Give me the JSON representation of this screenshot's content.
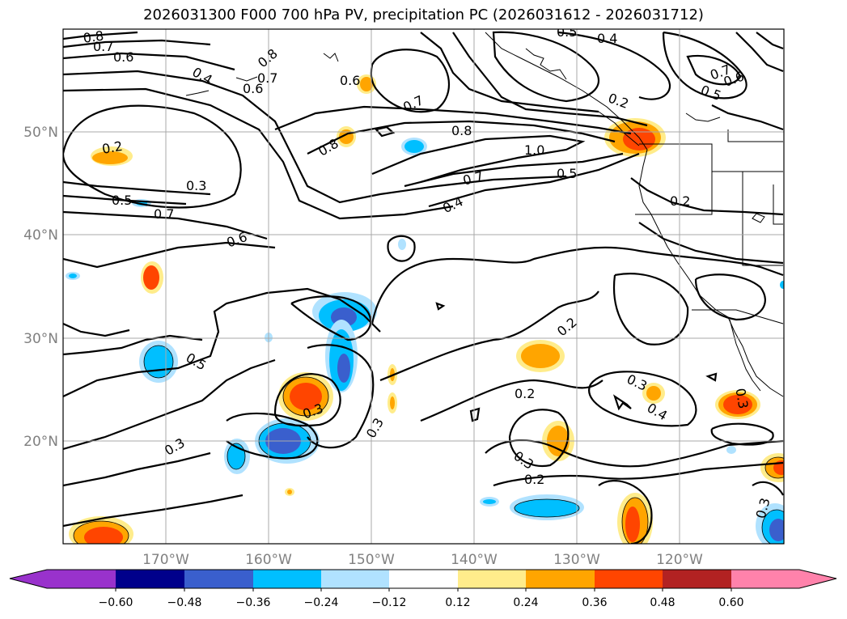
{
  "title": "2026031300 F000 700 hPa PV, precipitation PC (2026031612 - 2026031712)",
  "map": {
    "lat_labels": [
      "50°N",
      "40°N",
      "30°N",
      "20°N"
    ],
    "lon_labels": [
      "170°W",
      "160°W",
      "150°W",
      "140°W",
      "130°W",
      "120°W"
    ],
    "gridline_color": "#a9a9a9",
    "contour_color": "#000000"
  },
  "contour_labels": [
    "0.8",
    "0.7",
    "0.6",
    "0.4",
    "0.6",
    "0.8",
    "0.7",
    "0.6",
    "0.5",
    "0.4",
    "0.7",
    "0.7",
    "0.6",
    "0.5",
    "0.2",
    "0.2",
    "0.3",
    "0.5",
    "0.7",
    "0.6",
    "0.8",
    "0.8",
    "1.0",
    "0.7",
    "0.5",
    "0.4",
    "0.2",
    "0.5",
    "0.2",
    "0.2",
    "0.3",
    "0.3",
    "0.3",
    "0.4",
    "0.3",
    "0.3",
    "0.2",
    "0.3",
    "0.3"
  ],
  "colorbar": {
    "ticks": [
      "−0.60",
      "−0.48",
      "−0.36",
      "−0.24",
      "−0.12",
      "0.12",
      "0.24",
      "0.36",
      "0.48",
      "0.60"
    ],
    "colors": [
      "#9932cc",
      "#00008b",
      "#3a5fcd",
      "#00bfff",
      "#b0e2ff",
      "#ffffff",
      "#ffec8b",
      "#ffa500",
      "#ff4500",
      "#b22222",
      "#ff82ab"
    ]
  }
}
